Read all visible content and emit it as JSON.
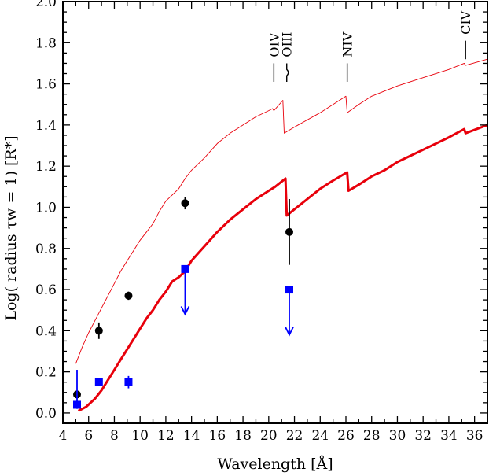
{
  "chart_data": {
    "type": "scatter",
    "xlabel": "Wavelength [Å]",
    "ylabel": "Log( radius τw = 1) [R*]",
    "xlim": [
      4,
      37
    ],
    "ylim": [
      -0.05,
      2.0
    ],
    "xticks_labeled": [
      4,
      6,
      8,
      10,
      12,
      14,
      16,
      18,
      20,
      22,
      24,
      26,
      28,
      30,
      32,
      34,
      36
    ],
    "yticks_labeled": [
      0.0,
      0.2,
      0.4,
      0.6,
      0.8,
      1.0,
      1.2,
      1.4,
      1.6,
      1.8,
      2.0
    ],
    "ytick_text": [
      "0.0",
      "0.2",
      "0.4",
      "0.6",
      "0.8",
      "1.0",
      "1.2",
      "1.4",
      "1.6",
      "1.8",
      "2.0"
    ],
    "grid": false,
    "series": [
      {
        "kind": "model-thin",
        "color": "#e8000b",
        "points": [
          [
            5.0,
            0.24
          ],
          [
            5.5,
            0.32
          ],
          [
            6,
            0.39
          ],
          [
            6.5,
            0.45
          ],
          [
            7,
            0.51
          ],
          [
            7.5,
            0.57
          ],
          [
            8,
            0.63
          ],
          [
            8.5,
            0.69
          ],
          [
            9,
            0.74
          ],
          [
            9.5,
            0.79
          ],
          [
            10,
            0.84
          ],
          [
            10.5,
            0.88
          ],
          [
            11,
            0.92
          ],
          [
            11.5,
            0.98
          ],
          [
            12,
            1.03
          ],
          [
            12.5,
            1.06
          ],
          [
            13,
            1.09
          ],
          [
            13.5,
            1.14
          ],
          [
            14,
            1.18
          ],
          [
            15,
            1.24
          ],
          [
            16,
            1.31
          ],
          [
            17,
            1.36
          ],
          [
            18,
            1.4
          ],
          [
            19,
            1.44
          ],
          [
            20,
            1.47
          ],
          [
            20.3,
            1.48
          ],
          [
            20.4,
            1.47
          ],
          [
            21.1,
            1.52
          ],
          [
            21.2,
            1.36
          ],
          [
            22,
            1.39
          ],
          [
            24,
            1.46
          ],
          [
            26,
            1.54
          ],
          [
            26.1,
            1.46
          ],
          [
            27,
            1.5
          ],
          [
            28,
            1.54
          ],
          [
            30,
            1.59
          ],
          [
            32,
            1.63
          ],
          [
            34,
            1.67
          ],
          [
            35.2,
            1.7
          ],
          [
            35.3,
            1.69
          ],
          [
            37,
            1.72
          ]
        ]
      },
      {
        "kind": "model-thick",
        "color": "#e8000b",
        "points": [
          [
            5.2,
            0.01
          ],
          [
            5.8,
            0.03
          ],
          [
            6.5,
            0.07
          ],
          [
            7,
            0.11
          ],
          [
            7.5,
            0.16
          ],
          [
            8,
            0.21
          ],
          [
            8.5,
            0.26
          ],
          [
            9,
            0.31
          ],
          [
            9.5,
            0.36
          ],
          [
            10,
            0.41
          ],
          [
            10.5,
            0.46
          ],
          [
            11,
            0.5
          ],
          [
            11.5,
            0.55
          ],
          [
            12,
            0.59
          ],
          [
            12.5,
            0.64
          ],
          [
            13,
            0.66
          ],
          [
            13.5,
            0.69
          ],
          [
            14,
            0.74
          ],
          [
            15,
            0.81
          ],
          [
            16,
            0.88
          ],
          [
            17,
            0.94
          ],
          [
            18,
            0.99
          ],
          [
            19,
            1.04
          ],
          [
            20,
            1.08
          ],
          [
            20.5,
            1.1
          ],
          [
            21.3,
            1.14
          ],
          [
            21.4,
            0.96
          ],
          [
            22,
            0.99
          ],
          [
            23,
            1.04
          ],
          [
            24,
            1.09
          ],
          [
            25,
            1.13
          ],
          [
            26.1,
            1.17
          ],
          [
            26.2,
            1.08
          ],
          [
            27,
            1.11
          ],
          [
            28,
            1.15
          ],
          [
            29,
            1.18
          ],
          [
            30,
            1.22
          ],
          [
            32,
            1.28
          ],
          [
            34,
            1.34
          ],
          [
            35.2,
            1.38
          ],
          [
            35.3,
            1.36
          ],
          [
            37,
            1.4
          ]
        ]
      },
      {
        "kind": "observed",
        "marker": "circle",
        "color": "#000000",
        "points": [
          {
            "x": 5.1,
            "y": 0.09,
            "err": 0.02
          },
          {
            "x": 6.8,
            "y": 0.4,
            "err": 0.04
          },
          {
            "x": 9.1,
            "y": 0.57,
            "err": 0.02
          },
          {
            "x": 13.5,
            "y": 1.02,
            "err": 0.03
          },
          {
            "x": 21.6,
            "y": 0.88,
            "err": 0.16
          }
        ]
      },
      {
        "kind": "upper-limits",
        "marker": "square",
        "color": "#0000ff",
        "points": [
          {
            "x": 5.1,
            "y": 0.04,
            "err": 0.02,
            "arrow_top": 0.21
          },
          {
            "x": 6.8,
            "y": 0.15,
            "err": 0.0
          },
          {
            "x": 9.1,
            "y": 0.15,
            "err": 0.03
          },
          {
            "x": 13.5,
            "y": 0.7,
            "arrow_to": 0.48
          },
          {
            "x": 21.6,
            "y": 0.6,
            "arrow_to": 0.38
          }
        ]
      }
    ],
    "annotations": [
      {
        "text": "OIV",
        "x": 20.4,
        "line_from": 1.61,
        "line_to": 1.7,
        "label_y": 1.73
      },
      {
        "text": "OIII",
        "x": 21.4,
        "line_from": 1.61,
        "line_to": 1.7,
        "label_y": 1.73,
        "wavy": true
      },
      {
        "text": "NIV",
        "x": 26.1,
        "line_from": 1.61,
        "line_to": 1.7,
        "label_y": 1.73
      },
      {
        "text": "CIV",
        "x": 35.3,
        "line_from": 1.72,
        "line_to": 1.81,
        "label_y": 1.84
      }
    ]
  }
}
